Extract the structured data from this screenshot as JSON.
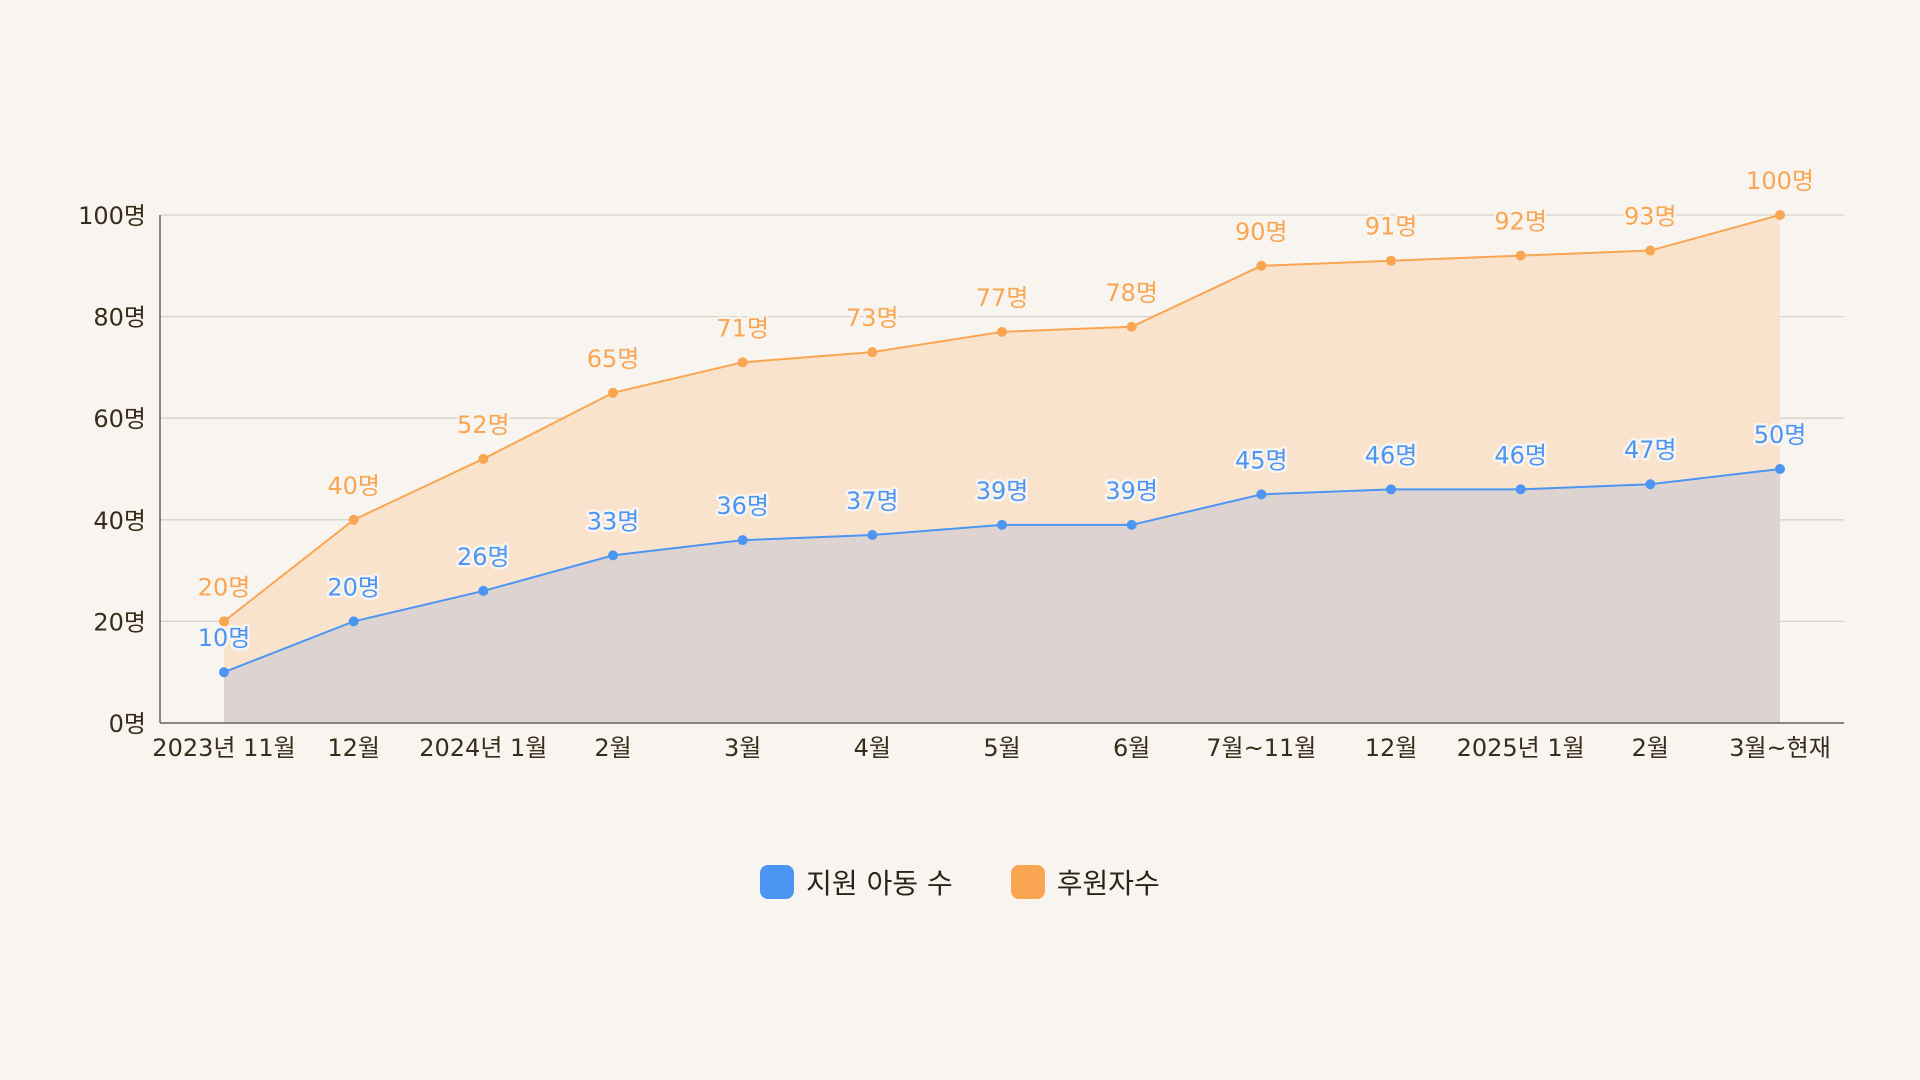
{
  "chart_data": {
    "type": "area",
    "categories": [
      "2023년 11월",
      "12월",
      "2024년 1월",
      "2월",
      "3월",
      "4월",
      "5월",
      "6월",
      "7월~11월",
      "12월",
      "2025년 1월",
      "2월",
      "3월~현재"
    ],
    "series": [
      {
        "name": "후원자수",
        "color": "#f9a552",
        "fill": "#f9e3cc",
        "values": [
          20,
          40,
          52,
          65,
          71,
          73,
          77,
          78,
          90,
          91,
          92,
          93,
          100
        ],
        "labels": [
          "20명",
          "40명",
          "52명",
          "65명",
          "71명",
          "73명",
          "77명",
          "78명",
          "90명",
          "91명",
          "92명",
          "93명",
          "100명"
        ]
      },
      {
        "name": "지원 아동 수",
        "color": "#4d95f2",
        "fill": "#ddd3d1",
        "values": [
          10,
          20,
          26,
          33,
          36,
          37,
          39,
          39,
          45,
          46,
          46,
          47,
          50
        ],
        "labels": [
          "10명",
          "20명",
          "26명",
          "33명",
          "36명",
          "37명",
          "39명",
          "39명",
          "45명",
          "46명",
          "46명",
          "47명",
          "50명"
        ]
      }
    ],
    "y_ticks": [
      0,
      20,
      40,
      60,
      80,
      100
    ],
    "y_tick_labels": [
      "0명",
      "20명",
      "40명",
      "60명",
      "80명",
      "100명"
    ],
    "ylim": [
      0,
      100
    ],
    "grid": true,
    "legend_position": "bottom"
  },
  "legend": {
    "items": [
      {
        "label": "지원 아동 수",
        "color": "#4d95f2"
      },
      {
        "label": "후원자수",
        "color": "#f9a552"
      }
    ]
  }
}
